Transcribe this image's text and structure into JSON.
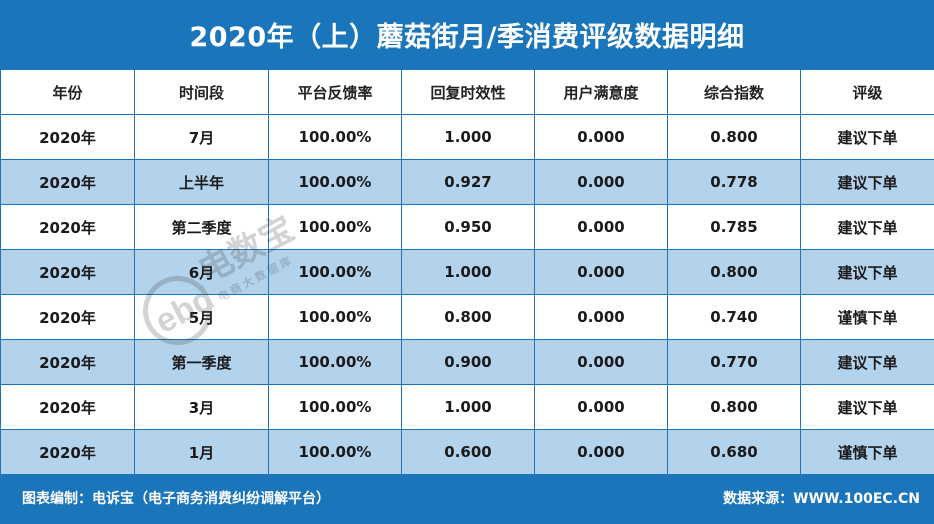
{
  "title": "2020年（上）蘑菇街月/季消费评级数据明细",
  "table": {
    "headers": [
      "年份",
      "时间段",
      "平台反馈率",
      "回复时效性",
      "用户满意度",
      "综合指数",
      "评级"
    ],
    "rows": [
      [
        "2020年",
        "7月",
        "100.00%",
        "1.000",
        "0.000",
        "0.800",
        "建议下单"
      ],
      [
        "2020年",
        "上半年",
        "100.00%",
        "0.927",
        "0.000",
        "0.778",
        "建议下单"
      ],
      [
        "2020年",
        "第二季度",
        "100.00%",
        "0.950",
        "0.000",
        "0.785",
        "建议下单"
      ],
      [
        "2020年",
        "6月",
        "100.00%",
        "1.000",
        "0.000",
        "0.800",
        "建议下单"
      ],
      [
        "2020年",
        "5月",
        "100.00%",
        "0.800",
        "0.000",
        "0.740",
        "谨慎下单"
      ],
      [
        "2020年",
        "第一季度",
        "100.00%",
        "0.900",
        "0.000",
        "0.770",
        "建议下单"
      ],
      [
        "2020年",
        "3月",
        "100.00%",
        "1.000",
        "0.000",
        "0.800",
        "建议下单"
      ],
      [
        "2020年",
        "1月",
        "100.00%",
        "0.600",
        "0.000",
        "0.680",
        "谨慎下单"
      ]
    ]
  },
  "footer": {
    "left": "图表编制：电诉宝（电子商务消费纠纷调解平台）",
    "right": "数据来源：WWW.100EC.CN"
  },
  "watermark": {
    "brand": "电数宝",
    "sub": "电商大数据库",
    "logo_text": "ebd"
  },
  "colors": {
    "brand_blue": "#1b75bb",
    "row_alt": "#b3d2ec"
  }
}
